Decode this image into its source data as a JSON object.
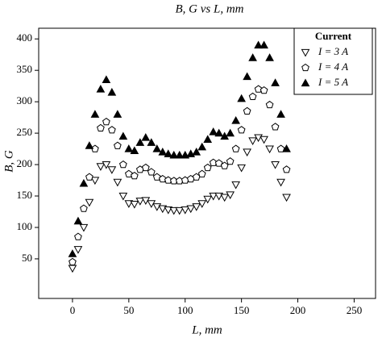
{
  "chart_data": {
    "type": "scatter",
    "title": "B, G vs L, mm",
    "x_label": "L, mm",
    "y_label": "B, G",
    "legend_title": "Current",
    "legend": "upper right",
    "x": [
      0,
      5,
      10,
      15,
      20,
      25,
      30,
      35,
      40,
      45,
      50,
      55,
      60,
      65,
      70,
      75,
      80,
      85,
      90,
      95,
      100,
      105,
      110,
      115,
      120,
      125,
      130,
      135,
      140,
      145,
      150,
      155,
      160,
      165,
      170,
      175,
      180,
      185,
      190
    ],
    "series": [
      {
        "name": "I = 3 A",
        "color": "#000000",
        "marker": "triangle-down",
        "filled": false,
        "values": [
          35,
          65,
          100,
          140,
          175,
          197,
          200,
          192,
          172,
          150,
          138,
          137,
          142,
          143,
          138,
          133,
          130,
          128,
          127,
          127,
          128,
          130,
          133,
          138,
          145,
          150,
          150,
          148,
          152,
          168,
          195,
          220,
          238,
          243,
          240,
          225,
          200,
          172,
          148
        ]
      },
      {
        "name": "I = 4 A",
        "color": "#000000",
        "marker": "pentagon",
        "filled": false,
        "values": [
          45,
          85,
          130,
          180,
          225,
          258,
          268,
          255,
          230,
          200,
          185,
          182,
          192,
          195,
          188,
          180,
          177,
          175,
          174,
          174,
          175,
          177,
          180,
          185,
          195,
          203,
          202,
          198,
          205,
          225,
          255,
          285,
          308,
          320,
          318,
          295,
          260,
          225,
          192
        ]
      },
      {
        "name": "I = 5 A",
        "color": "#000000",
        "marker": "triangle-up",
        "filled": true,
        "values": [
          58,
          110,
          170,
          230,
          280,
          320,
          335,
          315,
          280,
          245,
          225,
          222,
          235,
          243,
          235,
          225,
          220,
          217,
          215,
          215,
          215,
          217,
          220,
          228,
          240,
          252,
          250,
          245,
          250,
          270,
          305,
          340,
          370,
          390,
          390,
          370,
          330,
          280,
          225
        ]
      }
    ],
    "xlim": [
      -30,
      269
    ],
    "ylim": [
      -13,
      417
    ],
    "xticks": [
      0,
      50,
      100,
      150,
      200,
      250
    ],
    "yticks": [
      50,
      100,
      150,
      200,
      250,
      300,
      350,
      400
    ]
  }
}
